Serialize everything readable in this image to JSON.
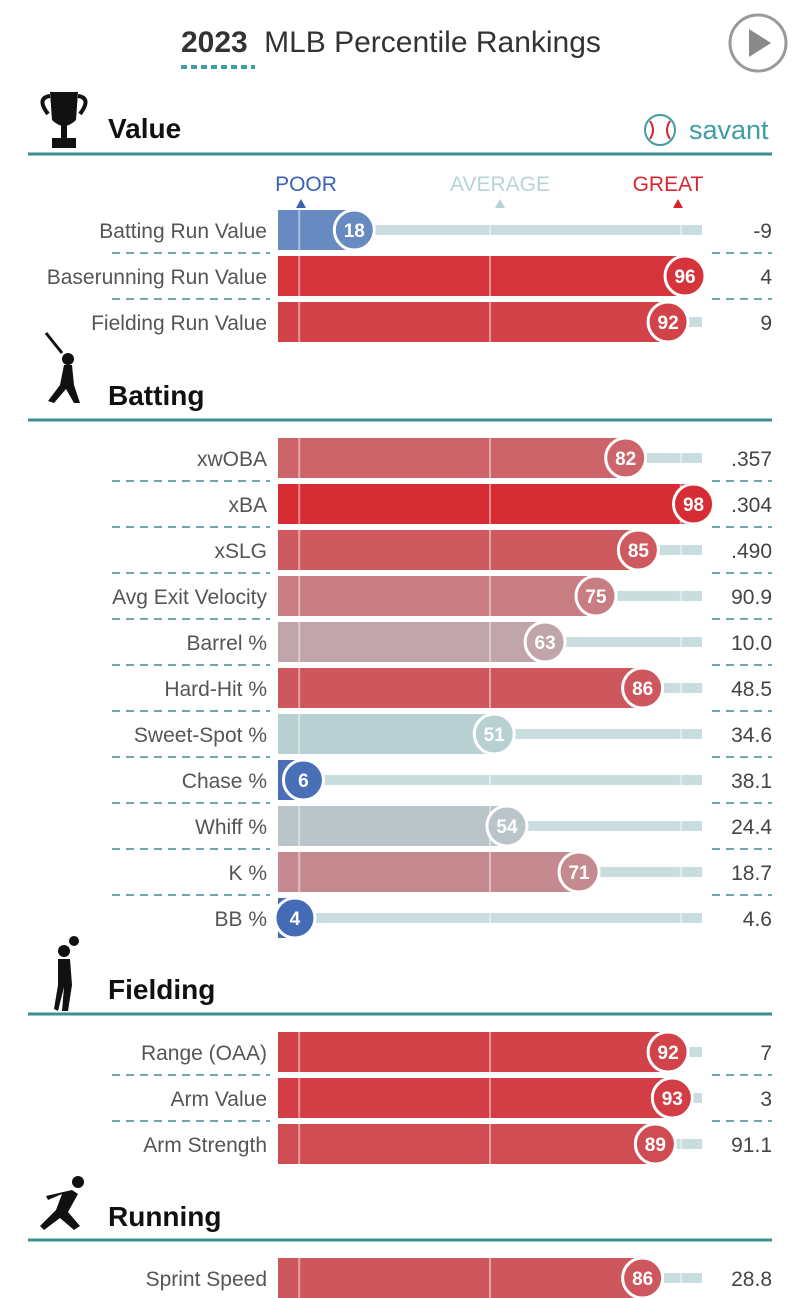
{
  "header": {
    "year": "2023",
    "title": "MLB Percentile Rankings",
    "brand": "savant"
  },
  "legend": {
    "poor": "POOR",
    "average": "AVERAGE",
    "great": "GREAT",
    "poor_color": "#3a62b3",
    "average_color": "#b8d3d6",
    "great_color": "#d7262e"
  },
  "colors": {
    "section_rule": "#3e8e92",
    "track": "#c9dcde",
    "accent_teal": "#3e9ea3"
  },
  "chart_data": {
    "type": "bar",
    "scale": [
      0,
      100
    ],
    "sections": [
      {
        "name": "Value",
        "icon": "trophy-icon",
        "metrics": [
          {
            "label": "Batting Run Value",
            "percentile": 18,
            "value": "-9"
          },
          {
            "label": "Baserunning Run Value",
            "percentile": 96,
            "value": "4"
          },
          {
            "label": "Fielding Run Value",
            "percentile": 92,
            "value": "9"
          }
        ]
      },
      {
        "name": "Batting",
        "icon": "batter-icon",
        "metrics": [
          {
            "label": "xwOBA",
            "percentile": 82,
            "value": ".357"
          },
          {
            "label": "xBA",
            "percentile": 98,
            "value": ".304"
          },
          {
            "label": "xSLG",
            "percentile": 85,
            "value": ".490"
          },
          {
            "label": "Avg Exit Velocity",
            "percentile": 75,
            "value": "90.9"
          },
          {
            "label": "Barrel %",
            "percentile": 63,
            "value": "10.0"
          },
          {
            "label": "Hard-Hit %",
            "percentile": 86,
            "value": "48.5"
          },
          {
            "label": "Sweet-Spot %",
            "percentile": 51,
            "value": "34.6"
          },
          {
            "label": "Chase %",
            "percentile": 6,
            "value": "38.1"
          },
          {
            "label": "Whiff %",
            "percentile": 54,
            "value": "24.4"
          },
          {
            "label": "K %",
            "percentile": 71,
            "value": "18.7"
          },
          {
            "label": "BB %",
            "percentile": 4,
            "value": "4.6"
          }
        ]
      },
      {
        "name": "Fielding",
        "icon": "fielder-icon",
        "metrics": [
          {
            "label": "Range (OAA)",
            "percentile": 92,
            "value": "7"
          },
          {
            "label": "Arm Value",
            "percentile": 93,
            "value": "3"
          },
          {
            "label": "Arm Strength",
            "percentile": 89,
            "value": "91.1"
          }
        ]
      },
      {
        "name": "Running",
        "icon": "runner-icon",
        "metrics": [
          {
            "label": "Sprint Speed",
            "percentile": 86,
            "value": "28.8"
          }
        ]
      }
    ]
  }
}
